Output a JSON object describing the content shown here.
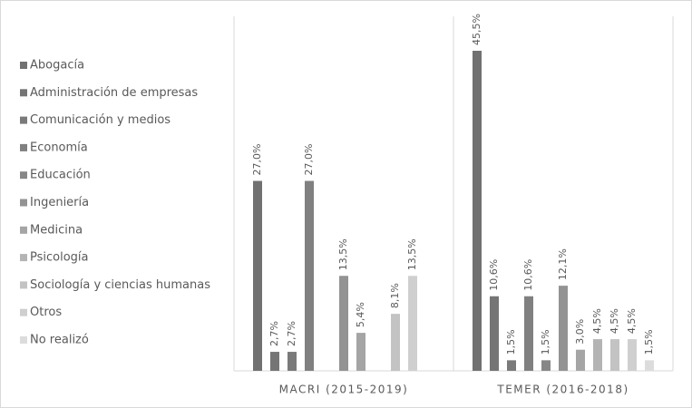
{
  "chart_data": {
    "type": "bar",
    "categories": [
      "MACRI (2015-2019)",
      "TEMER (2016-2018)"
    ],
    "legend": "left",
    "series": [
      {
        "name": "Abogacía",
        "color": "#717171",
        "values": [
          27.0,
          45.5
        ],
        "value_labels": [
          "27,0%",
          "45,5%"
        ]
      },
      {
        "name": "Administración de empresas",
        "color": "#757575",
        "values": [
          2.7,
          10.6
        ],
        "value_labels": [
          "2,7%",
          "10,6%"
        ]
      },
      {
        "name": "Comunicación y medios",
        "color": "#7a7a7a",
        "values": [
          2.7,
          1.5
        ],
        "value_labels": [
          "2,7%",
          "1,5%"
        ]
      },
      {
        "name": "Economía",
        "color": "#808080",
        "values": [
          27.0,
          10.6
        ],
        "value_labels": [
          "27,0%",
          "10,6%"
        ]
      },
      {
        "name": "Educación",
        "color": "#878787",
        "values": [
          null,
          1.5
        ],
        "value_labels": [
          null,
          "1,5%"
        ]
      },
      {
        "name": "Ingeniería",
        "color": "#939393",
        "values": [
          13.5,
          12.1
        ],
        "value_labels": [
          "13,5%",
          "12,1%"
        ]
      },
      {
        "name": "Medicina",
        "color": "#a5a5a5",
        "values": [
          5.4,
          3.0
        ],
        "value_labels": [
          "5,4%",
          "3,0%"
        ]
      },
      {
        "name": "Psicología",
        "color": "#b4b4b4",
        "values": [
          null,
          4.5
        ],
        "value_labels": [
          null,
          "4,5%"
        ]
      },
      {
        "name": "Sociología y ciencias humanas",
        "color": "#c3c3c3",
        "values": [
          8.1,
          4.5
        ],
        "value_labels": [
          "8,1%",
          "4,5%"
        ]
      },
      {
        "name": "Otros",
        "color": "#cfcfcf",
        "values": [
          13.5,
          4.5
        ],
        "value_labels": [
          "13,5%",
          "4,5%"
        ]
      },
      {
        "name": "No realizó",
        "color": "#dcdcdc",
        "values": [
          null,
          1.5
        ],
        "value_labels": [
          null,
          "1,5%"
        ]
      }
    ]
  }
}
